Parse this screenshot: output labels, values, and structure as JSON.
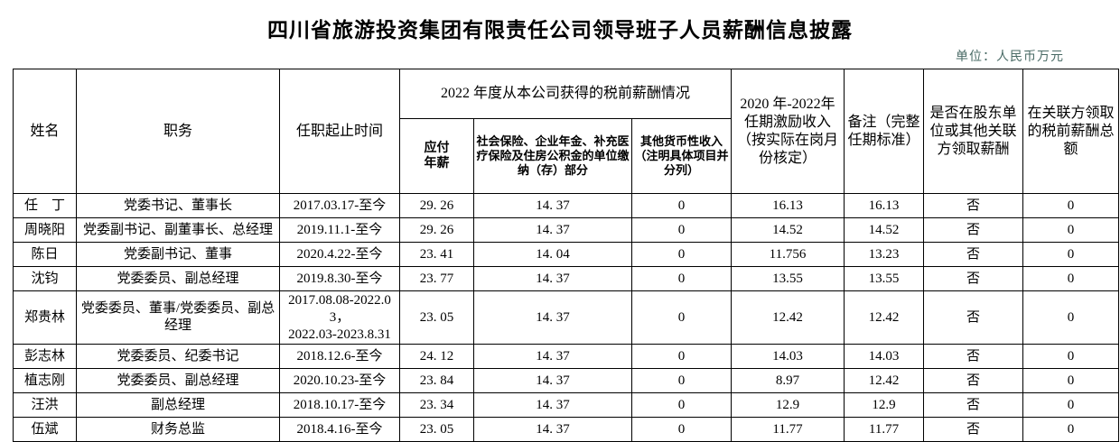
{
  "title": "四川省旅游投资集团有限责任公司领导班子人员薪酬信息披露",
  "unit_label": "单位：人民币万元",
  "unit_label_color": "#4a6b66",
  "table": {
    "headers": {
      "name": "姓名",
      "position": "职务",
      "tenure": "任职起止时间",
      "salary_2022_group": "2022 年度从本公司获得的税前薪酬情况",
      "payable_salary": "应付\n年薪",
      "social_insurance": "社会保险、企业年金、补充医疗保险及住房公积金的单位缴纳（存）部分",
      "other_income": "其他货币性收入（注明具体项目并分列）",
      "incentive_2020_2022": "2020 年-2022年任期激励收入（按实际在岗月份核定）",
      "remark": "备注（完整任期标准）",
      "related_party_flag": "是否在股东单位或其他关联方领取薪酬",
      "related_party_amount": "在关联方领取的税前薪酬总额"
    },
    "col_keys": [
      "name",
      "position",
      "tenure",
      "payable-salary",
      "social-insurance",
      "other-income",
      "incentive",
      "remark",
      "related-flag",
      "related-amount"
    ],
    "rows": [
      [
        "任　丁",
        "党委书记、董事长",
        "2017.03.17-至今",
        "29. 26",
        "14. 37",
        "0",
        "16.13",
        "16.13",
        "否",
        "0"
      ],
      [
        "周晓阳",
        "党委副书记、副董事长、总经理",
        "2019.11.1-至今",
        "29. 26",
        "14. 37",
        "0",
        "14.52",
        "14.52",
        "否",
        "0"
      ],
      [
        "陈日",
        "党委副书记、董事",
        "2020.4.22-至今",
        "23. 41",
        "14. 04",
        "0",
        "11.756",
        "13.23",
        "否",
        "0"
      ],
      [
        "沈钧",
        "党委委员、副总经理",
        "2019.8.30-至今",
        "23. 77",
        "14. 37",
        "0",
        "13.55",
        "13.55",
        "否",
        "0"
      ],
      [
        "郑贵林",
        "党委委员、董事/党委委员、副总经理",
        "2017.08.08-2022.03，\n2022.03-2023.8.31",
        "23. 05",
        "14. 37",
        "0",
        "12.42",
        "12.42",
        "否",
        "0"
      ],
      [
        "彭志林",
        "党委委员、纪委书记",
        "2018.12.6-至今",
        "24. 12",
        "14. 37",
        "0",
        "14.03",
        "14.03",
        "否",
        "0"
      ],
      [
        "植志刚",
        "党委委员、副总经理",
        "2020.10.23-至今",
        "23. 84",
        "14. 37",
        "0",
        "8.97",
        "12.42",
        "否",
        "0"
      ],
      [
        "汪洪",
        "副总经理",
        "2018.10.17-至今",
        "23. 34",
        "14. 37",
        "0",
        "12.9",
        "12.9",
        "否",
        "0"
      ],
      [
        "伍斌",
        "财务总监",
        "2018.4.16-至今",
        "23. 05",
        "14. 37",
        "0",
        "11.77",
        "11.77",
        "否",
        "0"
      ]
    ]
  }
}
